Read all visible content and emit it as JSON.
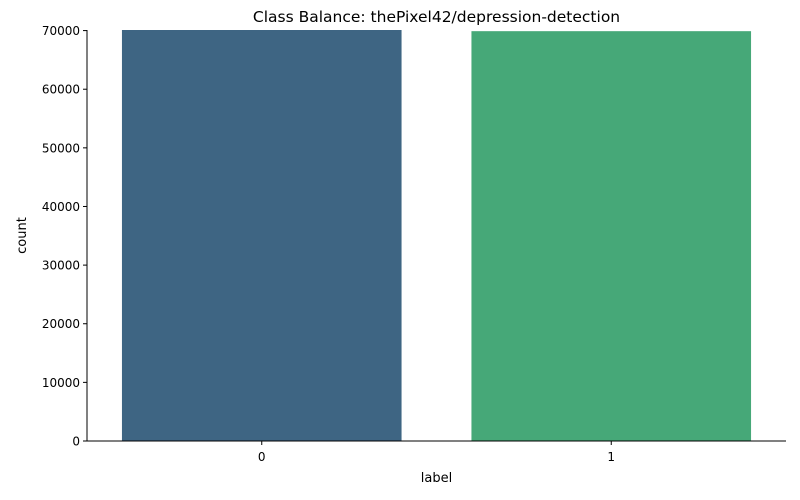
{
  "chart_data": {
    "type": "bar",
    "title": "Class Balance: thePixel42/depression-detection",
    "xlabel": "label",
    "ylabel": "count",
    "categories": [
      "0",
      "1"
    ],
    "values": [
      70100,
      69900
    ],
    "colors": [
      "#3e6583",
      "#46a878"
    ],
    "ylim": [
      0,
      70100
    ],
    "yticks": [
      0,
      10000,
      20000,
      30000,
      40000,
      50000,
      60000,
      70000
    ],
    "grid": false,
    "legend": "none"
  }
}
